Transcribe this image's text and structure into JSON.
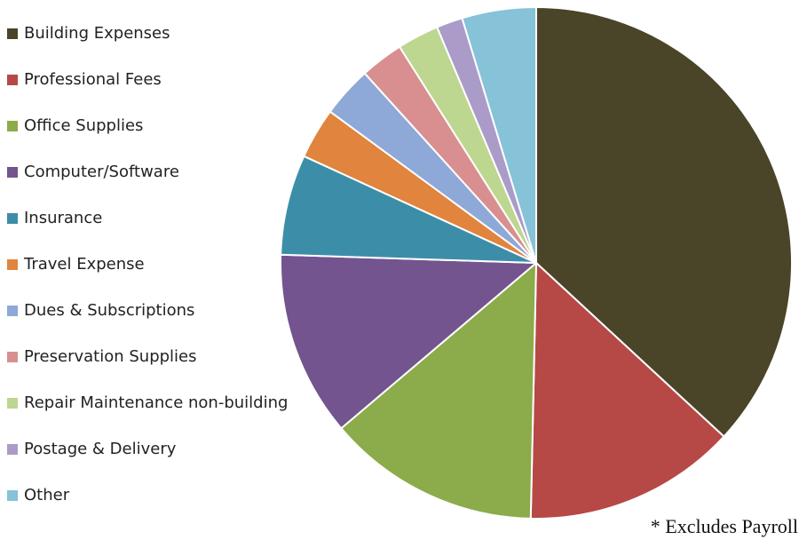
{
  "chart_data": {
    "type": "pie",
    "title": "",
    "legend_position": "left",
    "start_angle_deg": 0,
    "direction": "clockwise",
    "categories": [
      "Building Expenses",
      "Professional Fees",
      "Office Supplies",
      "Computer/Software",
      "Insurance",
      "Travel Expense",
      "Dues & Subscriptions",
      "Preservation Supplies",
      "Repair Maintenance non-building",
      "Postage & Delivery",
      "Other"
    ],
    "values": [
      37.8,
      13.8,
      13.8,
      12.0,
      6.5,
      3.3,
      3.3,
      2.8,
      2.7,
      1.7,
      4.8
    ],
    "colors": [
      "#4a4428",
      "#b64846",
      "#8cab4a",
      "#73548f",
      "#3c8ea8",
      "#e0843e",
      "#8ea8d8",
      "#d98f8f",
      "#bdd690",
      "#ab9bc9",
      "#86c2d8"
    ]
  },
  "footnote": "* Excludes Payroll"
}
